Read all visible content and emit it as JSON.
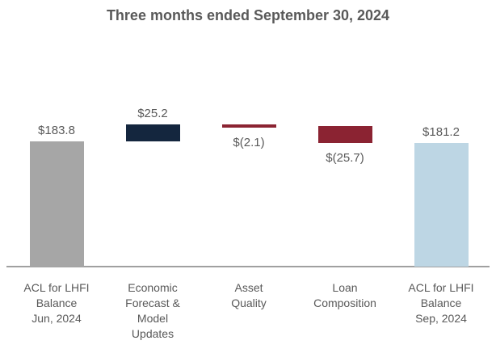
{
  "chart_data": {
    "type": "bar",
    "subtype": "waterfall",
    "title": "Three months ended September 30, 2024",
    "xlabel": "",
    "ylabel": "",
    "ylim": [
      0,
      215
    ],
    "grid": false,
    "legend": "none",
    "background": "#ffffff",
    "axis_color": "#a0a0a0",
    "text_color": "#595959",
    "categories": [
      "ACL for LHFI Balance Jun, 2024",
      "Economic Forecast & Model Updates",
      "Asset Quality",
      "Loan Composition",
      "ACL for LHFI Balance Sep, 2024"
    ],
    "bars": [
      {
        "id": "acl-jun-2024",
        "category_lines": [
          "ACL for LHFI",
          "Balance",
          "Jun, 2024"
        ],
        "role": "total-start",
        "value": 183.8,
        "start": 0,
        "end": 183.8,
        "value_label": "$183.8",
        "label_position": "above",
        "color": "#a6a6a6"
      },
      {
        "id": "economic-forecast-model-updates",
        "category_lines": [
          "Economic",
          "Forecast &",
          "Model",
          "Updates"
        ],
        "role": "increase",
        "value": 25.2,
        "start": 183.8,
        "end": 209.0,
        "value_label": "$25.2",
        "label_position": "above",
        "color": "#14263e"
      },
      {
        "id": "asset-quality",
        "category_lines": [
          "Asset",
          "Quality"
        ],
        "role": "decrease",
        "value": -2.1,
        "start": 209.0,
        "end": 206.9,
        "value_label": "$(2.1)",
        "label_position": "below",
        "color": "#8b2332"
      },
      {
        "id": "loan-composition",
        "category_lines": [
          "Loan",
          "Composition"
        ],
        "role": "decrease",
        "value": -25.7,
        "start": 206.9,
        "end": 181.2,
        "value_label": "$(25.7)",
        "label_position": "below",
        "color": "#8b2332"
      },
      {
        "id": "acl-sep-2024",
        "category_lines": [
          "ACL for LHFI",
          "Balance",
          "Sep, 2024"
        ],
        "role": "total-end",
        "value": 181.2,
        "start": 0,
        "end": 181.2,
        "value_label": "$181.2",
        "label_position": "above",
        "color": "#bdd6e4"
      }
    ]
  }
}
